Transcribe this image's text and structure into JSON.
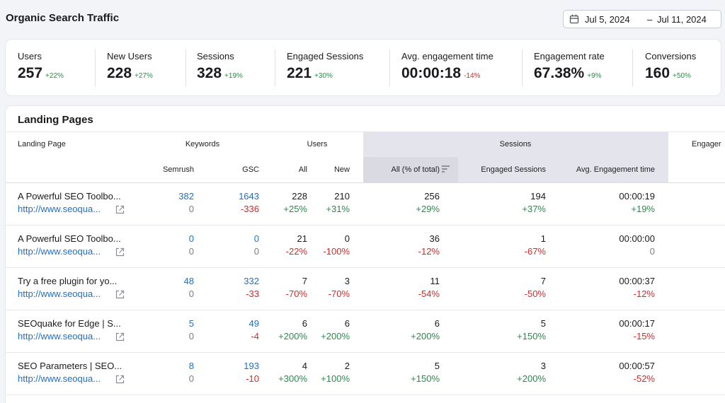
{
  "header": {
    "title": "Organic Search Traffic",
    "date_start": "Jul 5, 2024",
    "date_separator": "–",
    "date_end": "Jul 11, 2024"
  },
  "metrics": [
    {
      "label": "Users",
      "value": "257",
      "change": "+22%"
    },
    {
      "label": "New Users",
      "value": "228",
      "change": "+27%"
    },
    {
      "label": "Sessions",
      "value": "328",
      "change": "+19%"
    },
    {
      "label": "Engaged Sessions",
      "value": "221",
      "change": "+30%"
    },
    {
      "label": "Avg. engagement time",
      "value": "00:00:18",
      "change": "-14%"
    },
    {
      "label": "Engagement rate",
      "value": "67.38%",
      "change": "+9%"
    },
    {
      "label": "Conversions",
      "value": "160",
      "change": "+50%"
    }
  ],
  "table": {
    "title": "Landing Pages",
    "group_headers": [
      "Landing Page",
      "Keywords",
      "Users",
      "Sessions",
      "Engager"
    ],
    "sub_headers": [
      "Semrush",
      "GSC",
      "All",
      "New",
      "All (% of total)",
      "Engaged Sessions",
      "Avg. Engagement time"
    ],
    "rows": [
      {
        "title": "A Powerful SEO Toolbo...",
        "url": "http://www.seoqua...",
        "cells": [
          [
            "382",
            "0"
          ],
          [
            "1643",
            "-336"
          ],
          [
            "228",
            "+25%"
          ],
          [
            "210",
            "+31%"
          ],
          [
            "256",
            "+29%"
          ],
          [
            "194",
            "+37%"
          ],
          [
            "00:00:19",
            "+19%"
          ]
        ]
      },
      {
        "title": "A Powerful SEO Toolbo...",
        "url": "http://www.seoqua...",
        "cells": [
          [
            "0",
            "0"
          ],
          [
            "0",
            "0"
          ],
          [
            "21",
            "-22%"
          ],
          [
            "0",
            "-100%"
          ],
          [
            "36",
            "-12%"
          ],
          [
            "1",
            "-67%"
          ],
          [
            "00:00:00",
            "0"
          ]
        ]
      },
      {
        "title": "Try a free plugin for yo...",
        "url": "http://www.seoqua...",
        "cells": [
          [
            "48",
            "0"
          ],
          [
            "332",
            "-33"
          ],
          [
            "7",
            "-70%"
          ],
          [
            "3",
            "-70%"
          ],
          [
            "11",
            "-54%"
          ],
          [
            "7",
            "-50%"
          ],
          [
            "00:00:37",
            "-12%"
          ]
        ]
      },
      {
        "title": "SEOquake for Edge | S...",
        "url": "http://www.seoqua...",
        "cells": [
          [
            "5",
            "0"
          ],
          [
            "49",
            "-4"
          ],
          [
            "6",
            "+200%"
          ],
          [
            "6",
            "+200%"
          ],
          [
            "6",
            "+200%"
          ],
          [
            "5",
            "+150%"
          ],
          [
            "00:00:17",
            "-15%"
          ]
        ]
      },
      {
        "title": "SEO Parameters | SEO...",
        "url": "http://www.seoqua...",
        "cells": [
          [
            "8",
            "0"
          ],
          [
            "193",
            "-10"
          ],
          [
            "4",
            "+300%"
          ],
          [
            "2",
            "+100%"
          ],
          [
            "5",
            "+150%"
          ],
          [
            "3",
            "+200%"
          ],
          [
            "00:00:57",
            "-52%"
          ]
        ]
      }
    ]
  }
}
